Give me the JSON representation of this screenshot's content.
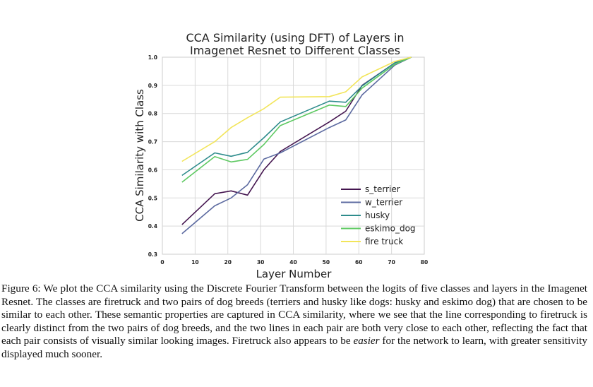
{
  "chart_data": {
    "type": "line",
    "title": "CCA Similarity (using DFT) of Layers in\nImagenet Resnet to Different Classes",
    "xlabel": "Layer Number",
    "ylabel": "CCA Similarity with Class",
    "xlim": [
      0,
      80
    ],
    "ylim": [
      0.3,
      1.0
    ],
    "xticks": [
      "0",
      "10",
      "20",
      "30",
      "40",
      "50",
      "60",
      "70",
      "80"
    ],
    "yticks": [
      "0.3",
      "0.4",
      "0.5",
      "0.6",
      "0.7",
      "0.8",
      "0.9",
      "1.0"
    ],
    "grid": true,
    "legend_position": "lower-right",
    "x": [
      6,
      16,
      21,
      26,
      31,
      36,
      51,
      56,
      61,
      71,
      76
    ],
    "series": [
      {
        "name": "s_terrier",
        "color": "#44154f",
        "values": [
          0.405,
          0.515,
          0.525,
          0.51,
          0.6,
          0.665,
          0.77,
          0.808,
          0.9,
          0.98,
          1.0
        ]
      },
      {
        "name": "w_terrier",
        "color": "#5c6aa0",
        "values": [
          0.373,
          0.472,
          0.5,
          0.547,
          0.638,
          0.66,
          0.75,
          0.777,
          0.866,
          0.972,
          1.0
        ]
      },
      {
        "name": "husky",
        "color": "#2e8c8c",
        "values": [
          0.58,
          0.66,
          0.648,
          0.662,
          0.714,
          0.77,
          0.844,
          0.84,
          0.898,
          0.98,
          1.0
        ]
      },
      {
        "name": "eskimo_dog",
        "color": "#5ec962",
        "values": [
          0.556,
          0.647,
          0.628,
          0.637,
          0.69,
          0.757,
          0.83,
          0.825,
          0.89,
          0.975,
          1.0
        ]
      },
      {
        "name": "fire truck",
        "color": "#f2e55a",
        "values": [
          0.63,
          0.7,
          0.75,
          0.785,
          0.817,
          0.858,
          0.86,
          0.877,
          0.93,
          0.985,
          1.0
        ]
      }
    ]
  },
  "caption": {
    "prefix": "Figure 6: We plot the CCA similarity using the Discrete Fourier Transform between the logits of five classes and layers in the Imagenet Resnet. The classes are firetruck and two pairs of dog breeds (terriers and husky like dogs: husky and eskimo dog) that are chosen to be similar to each other. These semantic properties are captured in CCA similarity, where we see that the line corresponding to firetruck is clearly distinct from the two pairs of dog breeds, and the two lines in each pair are both very close to each other, reflecting the fact that each pair consists of visually similar looking images. Firetruck also appears to be ",
    "emphasis": "easier",
    "suffix": " for the network to learn, with greater sensitivity displayed much sooner."
  }
}
